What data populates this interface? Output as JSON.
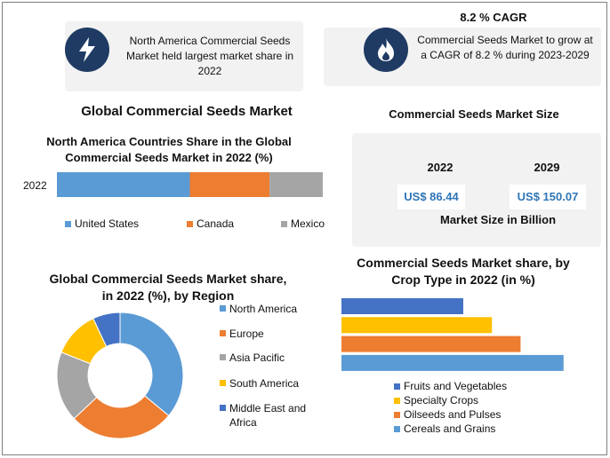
{
  "top_left": {
    "text": "North America Commercial Seeds Market held largest market share in 2022",
    "icon": "lightning-icon"
  },
  "top_right": {
    "heading": "8.2 % CAGR",
    "text": "Commercial Seeds Market to grow at a CAGR of 8.2 % during 2023-2029",
    "icon": "flame-icon"
  },
  "main_title": "Global Commercial Seeds Market",
  "size_panel": {
    "title": "Commercial Seeds Market Size",
    "year1": "2022",
    "year2": "2029",
    "value1": "US$ 86.44",
    "value2": "US$ 150.07",
    "caption": "Market Size in Billion"
  },
  "colors": {
    "blue": "#5b9bd5",
    "orange": "#ed7d31",
    "gray": "#a5a5a5",
    "yellow": "#ffc000",
    "navy": "#4472c4",
    "icon_bg": "#1f3b63"
  },
  "chart_data": [
    {
      "type": "bar",
      "title": "North America Countries Share in the Global Commercial Seeds Market in 2022 (%)",
      "categories": [
        "2022"
      ],
      "orientation": "horizontal-stacked-100",
      "series": [
        {
          "name": "United States",
          "values": [
            50
          ]
        },
        {
          "name": "Canada",
          "values": [
            30
          ]
        },
        {
          "name": "Mexico",
          "values": [
            20
          ]
        }
      ],
      "legend": "bottom"
    },
    {
      "type": "pie",
      "variant": "donut",
      "title": "Global Commercial Seeds Market share, in 2022 (%), by Region",
      "categories": [
        "North America",
        "Europe",
        "Asia Pacific",
        "South America",
        "Middle East and Africa"
      ],
      "values": [
        36,
        27,
        18,
        12,
        7
      ],
      "legend": "right"
    },
    {
      "type": "bar",
      "orientation": "horizontal",
      "title": "Commercial Seeds Market share, by Crop Type in 2022 (in %)",
      "categories": [
        "Fruits and Vegetables",
        "Specialty Crops",
        "Oilseeds and Pulses",
        "Cereals and Grains"
      ],
      "values": [
        17,
        21,
        25,
        31
      ],
      "xlim": [
        0,
        35
      ],
      "legend": "bottom"
    }
  ]
}
